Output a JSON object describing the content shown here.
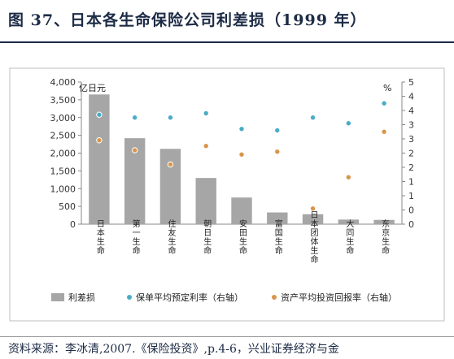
{
  "title": "图 37、日本各生命保险公司利差损（1999 年）",
  "source": "资料来源：李冰清,2007.《保险投资》,p.4-6，兴业证券经济与金",
  "chart_data": {
    "type": "bar",
    "categories": [
      "日本生命",
      "第一生命",
      "住友生命",
      "朝日生命",
      "安田生命",
      "富国生命",
      "日本团体生命",
      "大同生命",
      "东京生命"
    ],
    "y_left_unit": "亿日元",
    "y_right_unit": "%",
    "y_left_ticks": [
      "0",
      "500",
      "1,000",
      "1,500",
      "2,000",
      "2,500",
      "3,000",
      "3,500",
      "4,000"
    ],
    "y_right_ticks": [
      "0",
      "0",
      "1",
      "1",
      "2",
      "2",
      "3",
      "3",
      "4",
      "4",
      "5"
    ],
    "ylim_left": [
      0,
      4000
    ],
    "ylim_right": [
      0,
      5
    ],
    "series": [
      {
        "name": "利差损",
        "type": "bar",
        "axis": "left",
        "color": "#a6a6a6",
        "values": [
          3650,
          2420,
          2120,
          1300,
          750,
          330,
          280,
          130,
          120
        ]
      },
      {
        "name": "保单平均预定利率（右轴）",
        "type": "scatter",
        "axis": "right",
        "color": "#4aacc6",
        "values": [
          3.85,
          3.75,
          3.75,
          3.9,
          3.35,
          3.3,
          3.75,
          3.55,
          4.25
        ]
      },
      {
        "name": "资产平均投资回报率（右轴）",
        "type": "scatter",
        "axis": "right",
        "color": "#d9954a",
        "values": [
          2.95,
          2.6,
          2.1,
          2.75,
          2.45,
          2.55,
          0.55,
          1.65,
          3.25
        ]
      }
    ],
    "grid": false,
    "legend": "bottom"
  }
}
